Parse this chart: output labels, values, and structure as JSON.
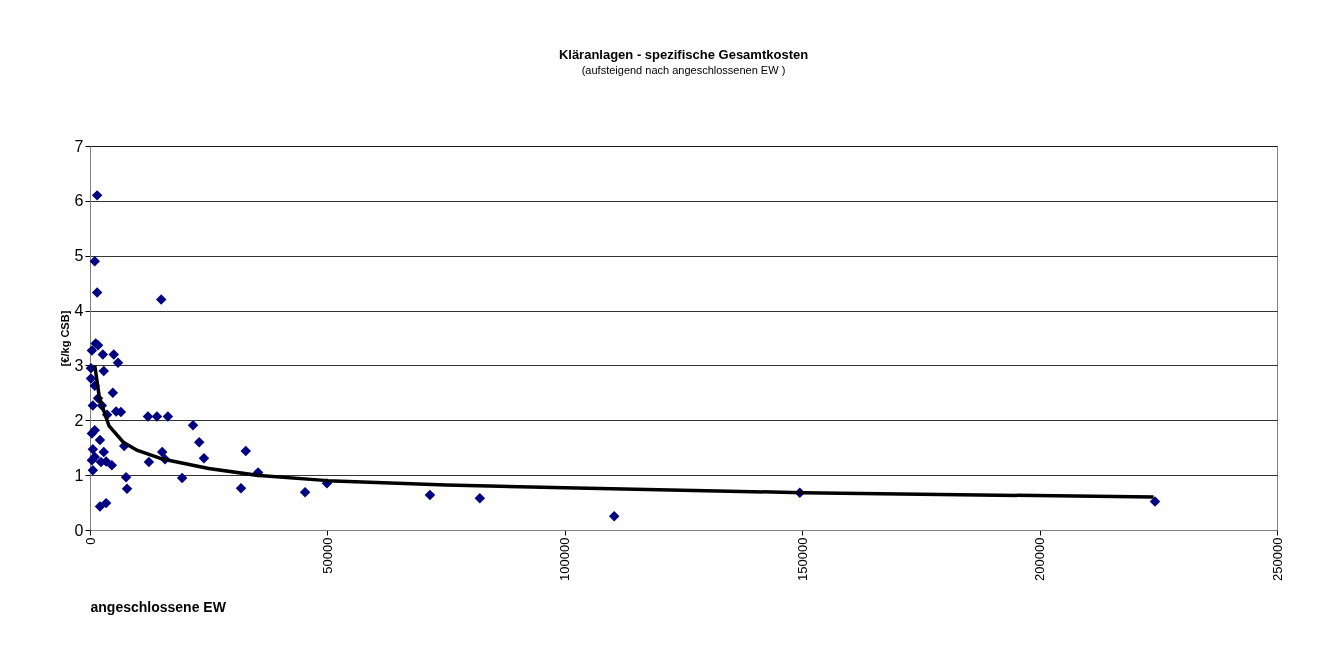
{
  "chart_data": {
    "type": "scatter",
    "title": "Kläranlagen - spezifische Gesamtkosten",
    "subtitle": "(aufsteigend nach angeschlossenen EW )",
    "xlabel": "angeschlossene EW",
    "ylabel": "[€/kg CSB]",
    "xlim": [
      0,
      250000
    ],
    "xticks": [
      0,
      50000,
      100000,
      150000,
      200000,
      250000
    ],
    "ylim": [
      0,
      7
    ],
    "yticks": [
      0,
      1,
      2,
      3,
      4,
      5,
      6,
      7
    ],
    "grid": "y",
    "series": [
      {
        "marker": "diamond",
        "color": "#000080",
        "x": [
          1500,
          1000,
          1500,
          15000,
          1200,
          1700,
          400,
          2700,
          5000,
          5900,
          2900,
          200,
          200,
          1000,
          4800,
          1700,
          600,
          2500,
          5500,
          6500,
          12200,
          14100,
          16400,
          3600,
          21700,
          1000,
          400,
          7200,
          2100,
          23000,
          15200,
          32800,
          600,
          2900,
          3400,
          4600,
          2300,
          12400,
          15800,
          24000,
          400,
          600,
          35400,
          7600,
          19400,
          49900,
          31800,
          7800,
          45300,
          71600,
          82100,
          110400,
          149500,
          224300,
          2100,
          3400,
          1000
        ],
        "values": [
          6.1,
          4.9,
          4.33,
          4.2,
          3.4,
          3.37,
          3.27,
          3.2,
          3.2,
          3.05,
          2.9,
          2.95,
          2.76,
          2.63,
          2.5,
          2.4,
          2.27,
          2.27,
          2.16,
          2.15,
          2.07,
          2.07,
          2.07,
          2.1,
          1.91,
          1.82,
          1.76,
          1.53,
          1.64,
          1.6,
          1.42,
          1.44,
          1.47,
          1.42,
          1.25,
          1.18,
          1.24,
          1.24,
          1.29,
          1.31,
          1.27,
          1.09,
          1.05,
          0.96,
          0.95,
          0.85,
          0.76,
          0.75,
          0.69,
          0.64,
          0.58,
          0.25,
          0.68,
          0.52,
          0.43,
          0.49,
          1.33
        ]
      },
      {
        "type": "line",
        "color": "#000000",
        "line_style": "solid",
        "x": [
          1000,
          2000,
          4000,
          7000,
          10000,
          15000,
          25000,
          35000,
          50000,
          75000,
          100000,
          150000,
          224000
        ],
        "values": [
          3.0,
          2.4,
          1.9,
          1.6,
          1.45,
          1.3,
          1.12,
          1.0,
          0.9,
          0.82,
          0.77,
          0.68,
          0.6
        ]
      }
    ]
  }
}
